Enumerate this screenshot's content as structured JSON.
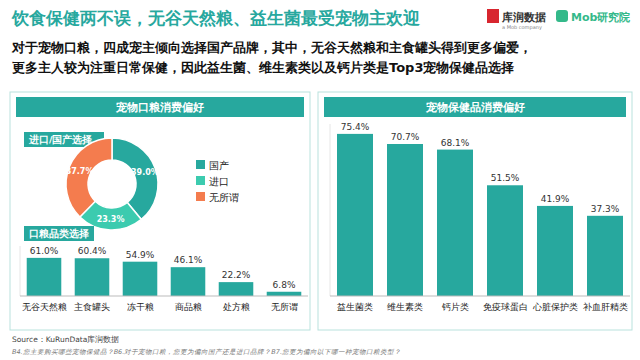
{
  "header": {
    "title": "饮食保健两不误，无谷天然粮、益生菌最受宠物主欢迎",
    "subtitle": [
      "对于宠物口粮，四成宠主倾向选择国产品牌，其中，无谷天然粮和主食罐头得到更多偏爱，",
      "更多主人较为注重日常保健，因此益生菌、维生素类以及钙片类是Top3宠物保健品选择"
    ],
    "logos": [
      "库润数据",
      "Mob研究院"
    ],
    "logo_tagline": "a Mob company"
  },
  "panel_title": "宠物口粮消费偏好",
  "chart_data": [
    {
      "type": "pie",
      "title": "进口/国产选择",
      "categories": [
        "国产",
        "进口",
        "无所谓"
      ],
      "values": [
        39.0,
        23.3,
        37.7
      ],
      "value_labels": [
        "39.0%",
        "23.3%",
        "37.7%"
      ],
      "colors": [
        "#27a89e",
        "#3ccbaf",
        "#f47c4e"
      ],
      "legend": "right",
      "data_labels": true
    },
    {
      "type": "bar",
      "title": "口粮品类选择",
      "categories": [
        "无谷天然粮",
        "主食罐头",
        "冻干粮",
        "商品粮",
        "处方粮",
        "无所谓"
      ],
      "values": [
        61.0,
        60.4,
        54.9,
        46.1,
        22.2,
        6.8
      ],
      "value_labels": [
        "61.0%",
        "60.4%",
        "54.9%",
        "46.1%",
        "22.2%",
        "6.8%"
      ],
      "color": "#27a89e",
      "ylim": [
        0,
        80
      ],
      "grid": false,
      "data_labels": true,
      "tick_labels": "x"
    },
    {
      "type": "bar",
      "title": "宠物保健品消费偏好",
      "categories": [
        "益生菌类",
        "维生素类",
        "钙片类",
        "免疫球蛋白",
        "心脏保护类",
        "补血肝精类"
      ],
      "values": [
        75.4,
        70.7,
        68.1,
        51.5,
        41.9,
        37.3
      ],
      "value_labels": [
        "75.4%",
        "70.7%",
        "68.1%",
        "51.5%",
        "41.9%",
        "37.3%"
      ],
      "color": "#27a89e",
      "ylim": [
        0,
        80
      ],
      "grid": false,
      "data_labels": true,
      "tick_labels": "x"
    }
  ],
  "footer": {
    "source": "Source：KuRunData库润数据",
    "note": "B4.您主要购买哪些宠物保健品？B6.对于宠物口粮，您更为偏向国产还是进口品牌？B7.您更为偏向以下哪一种宠物口粮类型？"
  }
}
